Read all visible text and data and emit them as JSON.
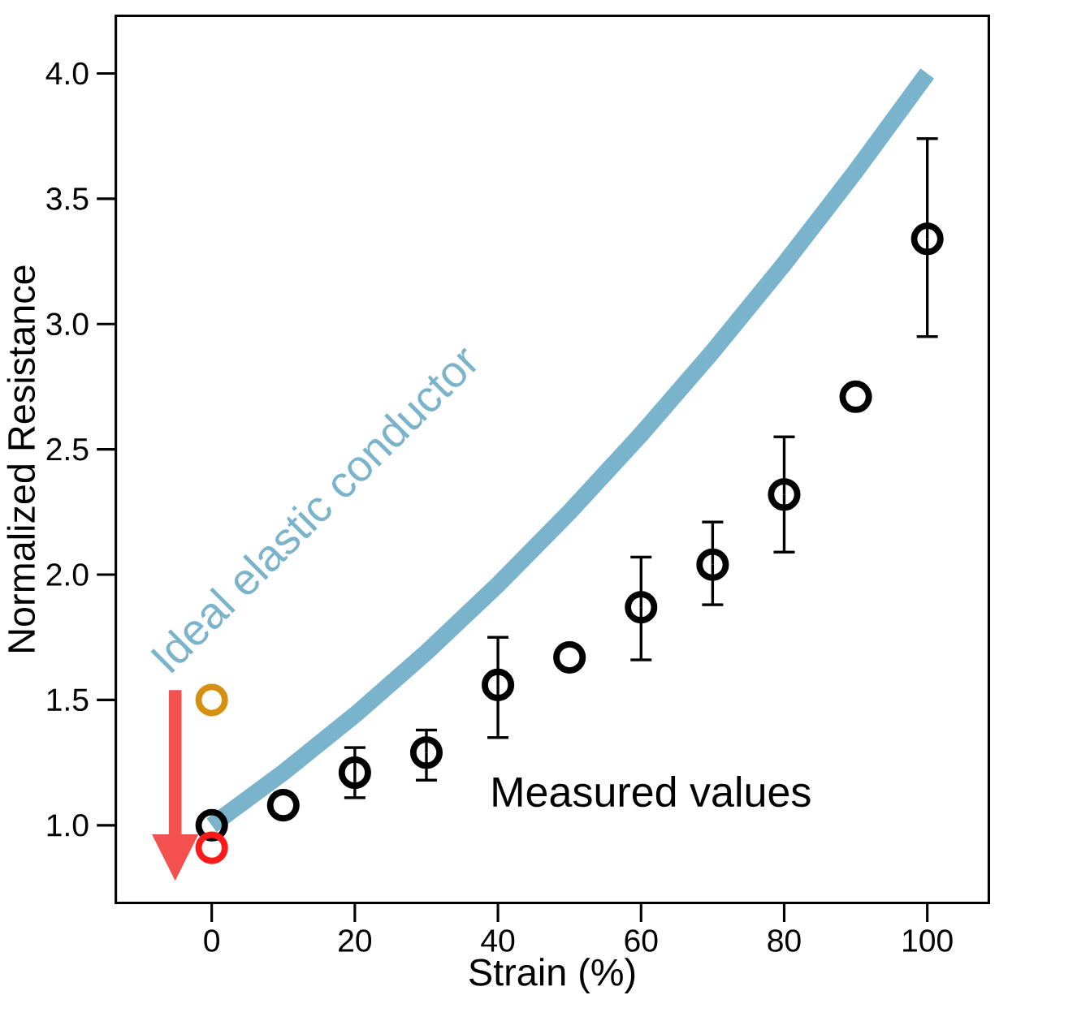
{
  "chart_data": {
    "type": "scatter",
    "xlabel": "Strain (%)",
    "ylabel": "Normalized Resistance",
    "xlim": [
      -13.4,
      108.6
    ],
    "ylim": [
      0.69,
      4.23
    ],
    "xticks": [
      0,
      20,
      40,
      60,
      80,
      100
    ],
    "yticks": [
      {
        "value": 1,
        "label": "1.0"
      },
      {
        "value": 1.5,
        "label": "1.5"
      },
      {
        "value": 2,
        "label": "2.0"
      },
      {
        "value": 2.5,
        "label": "2.5"
      },
      {
        "value": 3,
        "label": "3.0"
      },
      {
        "value": 3.5,
        "label": "3.5"
      },
      {
        "value": 4,
        "label": "4.0"
      }
    ],
    "legend": false,
    "grid": false,
    "marker": "circle",
    "series": [
      {
        "name": "Ideal elastic conductor",
        "type": "line",
        "color": "#7ab3cc",
        "marker": "none",
        "x": [
          0,
          10,
          20,
          30,
          40,
          50,
          60,
          70,
          80,
          90,
          100
        ],
        "values": [
          1.0,
          1.21,
          1.44,
          1.69,
          1.96,
          2.25,
          2.56,
          2.89,
          3.24,
          3.61,
          4.0
        ]
      },
      {
        "name": "Measured values",
        "type": "scatter",
        "color": "#000000",
        "x": [
          0,
          10,
          20,
          30,
          40,
          50,
          60,
          70,
          80,
          90,
          100
        ],
        "values": [
          1.0,
          1.08,
          1.21,
          1.29,
          1.56,
          1.67,
          1.87,
          2.04,
          2.32,
          2.71,
          3.34
        ],
        "errors": [
          null,
          null,
          [
            1.11,
            1.31
          ],
          [
            1.18,
            1.38
          ],
          [
            1.35,
            1.75
          ],
          null,
          [
            1.66,
            2.07
          ],
          [
            1.88,
            2.21
          ],
          [
            2.09,
            2.55
          ],
          null,
          [
            2.95,
            3.74
          ]
        ]
      },
      {
        "type": "scatter",
        "color": "#d4900e",
        "x": [
          0
        ],
        "values": [
          1.5
        ]
      },
      {
        "type": "scatter",
        "color": "#ff1a1a",
        "x": [
          0
        ],
        "values": [
          0.91
        ]
      }
    ]
  }
}
